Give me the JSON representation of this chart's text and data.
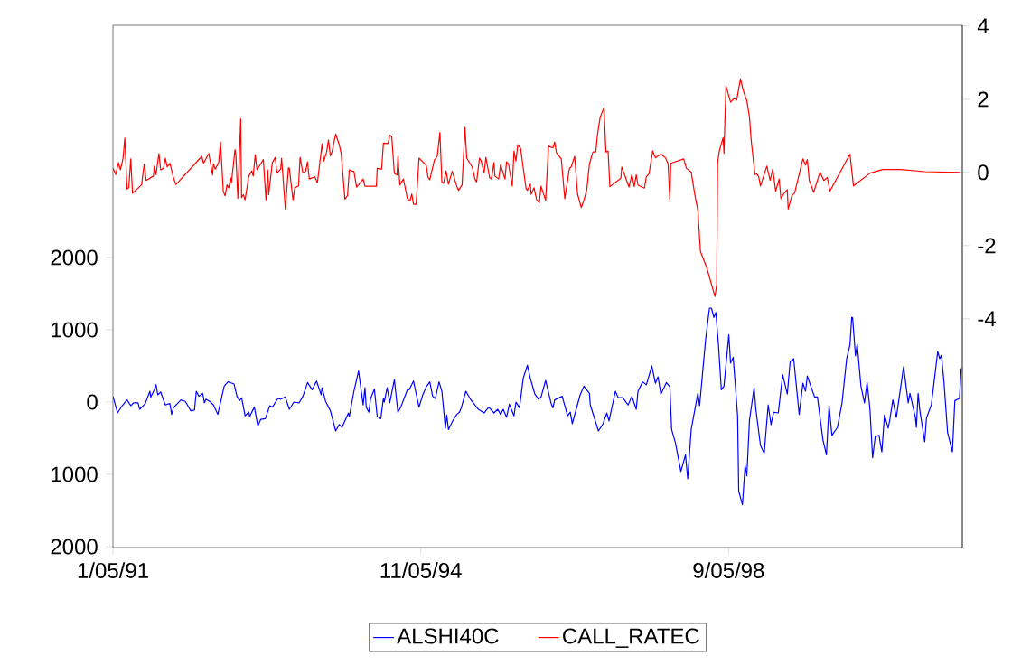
{
  "chart_data": {
    "type": "line",
    "xlim": [
      "1991-01-05",
      "2001-08-03"
    ],
    "xticks": [
      {
        "value": "1991-01-05",
        "label": "1/05/91"
      },
      {
        "value": "1994-11-05",
        "label": "11/05/94"
      },
      {
        "value": "1998-09-05",
        "label": "9/05/98"
      }
    ],
    "ylim": [
      -2012,
      5212
    ],
    "yticks": [
      {
        "value": -2000,
        "label": "2000"
      },
      {
        "value": -1000,
        "label": "1000"
      },
      0,
      1000,
      2000
    ],
    "y2lim": [
      -10.25,
      4.02
    ],
    "y2ticks": [
      -4,
      -2,
      0,
      2,
      4
    ],
    "legend": "bottom",
    "grid": false,
    "series": [
      {
        "name": "ALSHI40C",
        "color": "#0000ff",
        "x": [
          "1991-01-05",
          "1991-01-26",
          "1991-02-16",
          "1991-03-10",
          "1991-03-27",
          "1991-04-09",
          "1991-04-29",
          "1991-05-07",
          "1991-06-01",
          "1991-06-22",
          "1991-06-26",
          "1991-07-12",
          "1991-07-20",
          "1991-07-28",
          "1991-08-10",
          "1991-08-31",
          "1991-09-21",
          "1991-09-29",
          "1991-10-07",
          "1991-11-10",
          "1991-11-30",
          "1991-12-25",
          "1992-01-11",
          "1992-01-19",
          "1992-01-31",
          "1992-02-17",
          "1992-02-25",
          "1992-03-03",
          "1992-03-24",
          "1992-04-06",
          "1992-04-26",
          "1992-05-25",
          "1992-06-11",
          "1992-07-09",
          "1992-07-22",
          "1992-08-03",
          "1992-08-12",
          "1992-08-28",
          "1992-09-14",
          "1992-09-18",
          "1992-10-09",
          "1992-10-25",
          "1992-11-07",
          "1992-11-28",
          "1992-12-18",
          "1992-12-30",
          "1993-01-24",
          "1993-02-06",
          "1993-02-27",
          "1993-03-17",
          "1993-04-07",
          "1993-05-01",
          "1993-05-18",
          "1993-06-08",
          "1993-06-29",
          "1993-07-19",
          "1993-08-09",
          "1993-08-13",
          "1993-08-29",
          "1993-09-20",
          "1993-10-14",
          "1993-10-30",
          "1993-11-12",
          "1993-12-11",
          "1993-12-15",
          "1994-01-05",
          "1994-01-26",
          "1994-02-16",
          "1994-02-24",
          "1994-03-02",
          "1994-03-14",
          "1994-03-22",
          "1994-04-08",
          "1994-04-21",
          "1994-05-07",
          "1994-05-19",
          "1994-05-23",
          "1994-06-05",
          "1994-06-17",
          "1994-07-08",
          "1994-07-24",
          "1994-08-06",
          "1994-09-05",
          "1994-09-13",
          "1994-10-03",
          "1994-10-28",
          "1994-11-14",
          "1994-11-30",
          "1994-12-16",
          "1994-12-29",
          "1995-01-10",
          "1995-01-27",
          "1995-02-09",
          "1995-02-25",
          "1995-03-03",
          "1995-03-11",
          "1995-04-01",
          "1995-04-18",
          "1995-04-30",
          "1995-05-08",
          "1995-05-12",
          "1995-05-29",
          "1995-06-19",
          "1995-07-09",
          "1995-07-25",
          "1995-08-20",
          "1995-09-10",
          "1995-10-04",
          "1995-10-21",
          "1995-11-03",
          "1995-11-15",
          "1995-11-30",
          "1995-12-13",
          "1996-01-03",
          "1996-01-12",
          "1996-01-28",
          "1996-02-14",
          "1996-03-04",
          "1996-03-17",
          "1996-04-07",
          "1996-04-23",
          "1996-05-05",
          "1996-05-26",
          "1996-06-20",
          "1996-06-28",
          "1996-07-06",
          "1996-08-09",
          "1996-09-03",
          "1996-09-15",
          "1996-09-24",
          "1996-10-30",
          "1996-11-16",
          "1996-12-11",
          "1996-12-15",
          "1997-01-21",
          "1997-02-11",
          "1997-02-28",
          "1997-03-10",
          "1997-04-08",
          "1997-04-21",
          "1997-05-11",
          "1997-06-05",
          "1997-06-22",
          "1997-07-12",
          "1997-07-20",
          "1997-08-10",
          "1997-08-27",
          "1997-09-21",
          "1997-10-07",
          "1997-10-19",
          "1997-11-01",
          "1997-11-26",
          "1997-12-12",
          "1997-12-20",
          "1998-01-06",
          "1998-01-31",
          "1998-02-21",
          "1998-03-03",
          "1998-03-19",
          "1998-04-18",
          "1998-04-26",
          "1998-05-04",
          "1998-05-24",
          "1998-06-10",
          "1998-06-19",
          "1998-06-30",
          "1998-07-09",
          "1998-07-21",
          "1998-08-03",
          "1998-08-15",
          "1998-09-06",
          "1998-09-14",
          "1998-09-26",
          "1998-10-16",
          "1998-10-21",
          "1998-11-07",
          "1998-11-19",
          "1998-11-27",
          "1998-12-09",
          "1998-12-30",
          "1999-01-07",
          "1999-01-28",
          "1999-02-14",
          "1999-03-04",
          "1999-03-17",
          "1999-03-29",
          "1999-04-19",
          "1999-05-09",
          "1999-05-30",
          "1999-06-12",
          "1999-06-28",
          "1999-07-23",
          "1999-08-09",
          "1999-08-21",
          "1999-08-29",
          "1999-10-01",
          "1999-10-14",
          "1999-11-08",
          "1999-11-24",
          "1999-12-06",
          "1999-12-19",
          "2000-01-13",
          "2000-02-03",
          "2000-02-24",
          "2000-03-10",
          "2000-03-18",
          "2000-03-22",
          "2000-04-04",
          "2000-04-12",
          "2000-04-29",
          "2000-05-15",
          "2000-05-27",
          "2000-06-09",
          "2000-06-21",
          "2000-07-03",
          "2000-07-20",
          "2000-08-02",
          "2000-08-14",
          "2000-08-31",
          "2000-09-08",
          "2000-09-21",
          "2000-10-07",
          "2000-11-09",
          "2000-11-30",
          "2000-12-08",
          "2001-01-02",
          "2001-01-06",
          "2001-01-14",
          "2001-01-22",
          "2001-02-13",
          "2001-02-21",
          "2001-03-15",
          "2001-04-01",
          "2001-04-13",
          "2001-04-22",
          "2001-04-30",
          "2001-05-12",
          "2001-05-28",
          "2001-06-19",
          "2001-06-30",
          "2001-07-21",
          "2001-07-29"
        ],
        "values": [
          80,
          -150,
          -50,
          30,
          -50,
          -10,
          -10,
          -100,
          -20,
          150,
          70,
          170,
          240,
          100,
          140,
          -40,
          -20,
          -170,
          -80,
          30,
          10,
          -120,
          -110,
          150,
          80,
          120,
          -10,
          40,
          0,
          -40,
          -170,
          220,
          280,
          250,
          80,
          20,
          60,
          -190,
          -140,
          -200,
          -70,
          -330,
          -240,
          -230,
          -50,
          -70,
          50,
          40,
          70,
          -100,
          0,
          -10,
          80,
          270,
          170,
          290,
          100,
          200,
          10,
          -120,
          -400,
          -310,
          -350,
          -150,
          -200,
          150,
          430,
          -40,
          200,
          -70,
          -140,
          50,
          180,
          -200,
          -230,
          50,
          0,
          200,
          -10,
          310,
          -140,
          -70,
          170,
          170,
          290,
          -70,
          100,
          210,
          280,
          80,
          50,
          280,
          150,
          -360,
          -180,
          -380,
          -250,
          -170,
          -140,
          -80,
          -40,
          150,
          40,
          -40,
          -100,
          -150,
          -70,
          -150,
          -100,
          -170,
          -100,
          -210,
          -30,
          -190,
          0,
          -80,
          330,
          510,
          330,
          110,
          40,
          70,
          300,
          -20,
          -80,
          30,
          80,
          -190,
          -140,
          -300,
          100,
          220,
          120,
          -40,
          -400,
          -300,
          -150,
          -260,
          150,
          60,
          60,
          -40,
          80,
          -100,
          150,
          280,
          240,
          500,
          260,
          350,
          110,
          270,
          210,
          -380,
          -560,
          -960,
          -730,
          -1060,
          -380,
          120,
          -50,
          210,
          880,
          1300,
          1300,
          1170,
          1240,
          790,
          170,
          220,
          930,
          540,
          620,
          -190,
          -1230,
          -1420,
          -880,
          -1020,
          -250,
          200,
          -100,
          -600,
          -710,
          -40,
          -310,
          -140,
          -150,
          380,
          110,
          560,
          600,
          -170,
          260,
          150,
          360,
          70,
          70,
          -520,
          -730,
          -50,
          -460,
          -350,
          -10,
          600,
          790,
          1170,
          1170,
          640,
          800,
          220,
          -10,
          270,
          -100,
          -770,
          -480,
          -460,
          -690,
          -180,
          -360,
          -230,
          30,
          -210,
          490,
          -10,
          120,
          -220,
          -350,
          120,
          -120,
          -550,
          -220,
          -40,
          390,
          700,
          600,
          650,
          260,
          -420,
          -690,
          20,
          50,
          470
        ]
      },
      {
        "name": "CALL_RATEC",
        "color": "#ff0000",
        "axis": "y2",
        "x": [
          "1991-01-05",
          "1991-01-18",
          "1991-01-30",
          "1991-02-08",
          "1991-02-20",
          "1991-02-28",
          "1991-03-10",
          "1991-03-18",
          "1991-03-27",
          "1991-04-04",
          "1991-05-15",
          "1991-05-27",
          "1991-06-05",
          "1991-07-08",
          "1991-07-12",
          "1991-07-20",
          "1991-08-02",
          "1991-08-10",
          "1991-08-23",
          "1991-08-31",
          "1991-09-09",
          "1991-09-21",
          "1991-10-07",
          "1991-10-19",
          "1992-02-13",
          "1992-02-21",
          "1992-03-16",
          "1992-04-02",
          "1992-04-06",
          "1992-04-14",
          "1992-04-30",
          "1992-05-08",
          "1992-05-21",
          "1992-05-29",
          "1992-06-07",
          "1992-06-15",
          "1992-06-23",
          "1992-06-27",
          "1992-07-13",
          "1992-07-17",
          "1992-07-26",
          "1992-08-08",
          "1992-08-12",
          "1992-08-20",
          "1992-08-28",
          "1992-09-14",
          "1992-09-27",
          "1992-10-04",
          "1992-10-13",
          "1992-10-21",
          "1992-11-19",
          "1992-12-01",
          "1992-12-09",
          "1992-12-13",
          "1992-12-30",
          "1993-01-12",
          "1993-01-20",
          "1993-02-06",
          "1993-02-10",
          "1993-02-27",
          "1993-03-13",
          "1993-03-17",
          "1993-04-03",
          "1993-04-11",
          "1993-04-28",
          "1993-05-05",
          "1993-05-18",
          "1993-05-30",
          "1993-06-08",
          "1993-06-16",
          "1993-07-11",
          "1993-07-23",
          "1993-08-13",
          "1993-08-21",
          "1993-09-03",
          "1993-09-11",
          "1993-09-20",
          "1993-09-28",
          "1993-10-14",
          "1993-10-30",
          "1993-11-08",
          "1993-11-25",
          "1993-12-07",
          "1993-12-15",
          "1993-12-31",
          "1994-01-05",
          "1994-01-17",
          "1994-01-26",
          "1994-02-16",
          "1994-02-24",
          "1994-04-17",
          "1994-04-21",
          "1994-05-11",
          "1994-05-19",
          "1994-06-09",
          "1994-06-17",
          "1994-06-26",
          "1994-07-08",
          "1994-07-20",
          "1994-07-24",
          "1994-08-02",
          "1994-08-18",
          "1994-09-05",
          "1994-09-17",
          "1994-09-25",
          "1994-10-03",
          "1994-10-15",
          "1994-10-28",
          "1994-11-30",
          "1994-12-08",
          "1994-12-16",
          "1995-01-06",
          "1995-01-19",
          "1995-01-31",
          "1995-02-09",
          "1995-02-17",
          "1995-02-28",
          "1995-03-11",
          "1995-03-28",
          "1995-04-18",
          "1995-04-26",
          "1995-05-12",
          "1995-05-25",
          "1995-06-02",
          "1995-06-27",
          "1995-07-09",
          "1995-07-17",
          "1995-07-30",
          "1995-08-07",
          "1995-08-20",
          "1995-08-28",
          "1995-09-14",
          "1995-09-22",
          "1995-10-04",
          "1995-10-08",
          "1995-10-25",
          "1995-11-03",
          "1995-11-23",
          "1995-11-30",
          "1995-12-09",
          "1995-12-26",
          "1996-01-03",
          "1996-01-12",
          "1996-01-20",
          "1996-02-02",
          "1996-02-14",
          "1996-02-27",
          "1996-03-04",
          "1996-03-17",
          "1996-03-21",
          "1996-04-03",
          "1996-04-15",
          "1996-04-27",
          "1996-05-05",
          "1996-05-26",
          "1996-06-08",
          "1996-06-28",
          "1996-07-06",
          "1996-07-14",
          "1996-08-05",
          "1996-08-21",
          "1996-09-11",
          "1996-09-19",
          "1996-10-05",
          "1996-10-18",
          "1996-11-04",
          "1996-11-16",
          "1996-11-29",
          "1996-12-11",
          "1996-12-27",
          "1997-01-09",
          "1997-01-17",
          "1997-01-29",
          "1997-02-15",
          "1997-02-24",
          "1997-03-06",
          "1997-03-14",
          "1997-05-03",
          "1997-05-07",
          "1997-06-09",
          "1997-06-22",
          "1997-07-03",
          "1997-07-12",
          "1997-07-20",
          "1997-08-18",
          "1997-08-27",
          "1997-09-08",
          "1997-09-25",
          "1997-10-07",
          "1997-11-01",
          "1997-11-22",
          "1997-12-04",
          "1997-12-12",
          "1997-12-16",
          "1998-02-13",
          "1998-02-25",
          "1998-03-19",
          "1998-04-05",
          "1998-04-18",
          "1998-04-30",
          "1998-05-29",
          "1998-07-05",
          "1998-07-13",
          "1998-07-17",
          "1998-07-25",
          "1998-08-11",
          "1998-08-15",
          "1998-08-24",
          "1998-09-14",
          "1998-09-30",
          "1998-10-12",
          "1998-10-29",
          "1998-11-11",
          "1998-11-27",
          "1998-12-09",
          "1998-12-17",
          "1999-01-03",
          "1999-01-11",
          "1999-01-20",
          "1999-01-28",
          "1999-02-26",
          "1999-03-13",
          "1999-03-25",
          "1999-04-07",
          "1999-04-23",
          "1999-05-01",
          "1999-05-13",
          "1999-05-30",
          "1999-06-03",
          "1999-06-20",
          "1999-07-02",
          "1999-08-09",
          "1999-08-21",
          "1999-08-29",
          "1999-09-07",
          "1999-09-27",
          "1999-10-26",
          "1999-11-12",
          "1999-11-28",
          "1999-12-10",
          "2000-03-10",
          "2000-03-26",
          "2000-06-09",
          "2000-08-06",
          "2000-10-27",
          "2001-02-13",
          "2001-07-25"
        ],
        "values": [
          0.11,
          -0.06,
          0.27,
          0.07,
          0.39,
          0.94,
          -0.45,
          -0.42,
          0.37,
          -0.57,
          -0.34,
          0.23,
          -0.22,
          -0.1,
          0.17,
          -0.06,
          0.52,
          0.07,
          0.11,
          0.39,
          0.15,
          0.25,
          -0.14,
          -0.33,
          0.44,
          0.25,
          0.52,
          -0.07,
          0.23,
          0.09,
          0.27,
          0.83,
          -0.53,
          -0.64,
          -0.34,
          -0.42,
          -0.15,
          -0.28,
          0.62,
          0.48,
          -0.71,
          1.46,
          -0.69,
          -0.61,
          -0.75,
          -0.1,
          0.04,
          -0.1,
          0.48,
          0.07,
          0.35,
          -0.75,
          0.07,
          -0.61,
          0.27,
          0.41,
          -0.02,
          0.09,
          0.39,
          -1.0,
          0.12,
          0.12,
          -0.75,
          -0.42,
          -0.37,
          0.41,
          -0.02,
          0.03,
          0.29,
          -0.18,
          -0.12,
          -0.28,
          0.78,
          0.31,
          0.56,
          0.89,
          0.45,
          0.58,
          1.05,
          0.76,
          0.52,
          -0.73,
          -0.63,
          0.07,
          0.03,
          0.03,
          -0.4,
          -0.34,
          -0.18,
          -0.38,
          -0.38,
          0.11,
          0.09,
          0.8,
          0.79,
          1.02,
          0.97,
          -0.03,
          -0.07,
          0.44,
          -0.34,
          -0.18,
          -0.71,
          -0.78,
          -0.59,
          -0.87,
          -0.87,
          0.39,
          0.19,
          -0.14,
          -0.2,
          0.34,
          0.44,
          1.09,
          -0.26,
          -0.3,
          0.04,
          -0.32,
          0.03,
          -0.38,
          -0.49,
          -0.34,
          1.23,
          0.39,
          0.15,
          -0.18,
          -0.26,
          0.39,
          0.31,
          -0.02,
          0.41,
          -0.14,
          -0.18,
          0.27,
          -0.1,
          -0.18,
          0.21,
          -0.18,
          0.29,
          0.23,
          -0.37,
          0.58,
          0.31,
          0.76,
          0.66,
          0.12,
          -0.44,
          -0.49,
          -0.32,
          -0.6,
          -0.42,
          -0.75,
          -0.83,
          -0.38,
          -0.76,
          0.72,
          0.67,
          0.83,
          0.54,
          0.37,
          -0.72,
          0.11,
          0.15,
          0.44,
          -0.59,
          -0.96,
          -0.76,
          -0.47,
          0.23,
          0.56,
          0.56,
          1.05,
          1.51,
          1.77,
          0.56,
          0.58,
          -0.39,
          -0.16,
          0.15,
          -0.4,
          -0.06,
          -0.39,
          -0.07,
          -0.35,
          -0.43,
          -0.12,
          -0.04,
          0.59,
          0.4,
          0.5,
          0.4,
          0.23,
          -0.78,
          0.25,
          0.37,
          0.11,
          0.01,
          -0.63,
          -1.03,
          -2.16,
          -2.61,
          -3.39,
          -3.06,
          0.27,
          0.59,
          0.95,
          0.52,
          2.37,
          1.92,
          2.02,
          1.98,
          2.56,
          2.23,
          1.96,
          1.51,
          0.86,
          -0.06,
          -0.04,
          -0.12,
          -0.37,
          0.17,
          -0.22,
          0.09,
          -0.51,
          -0.18,
          -0.72,
          -0.59,
          -0.47,
          -1.0,
          -0.63,
          -0.57,
          0.37,
          0.2,
          0.35,
          -0.22,
          -0.54,
          0.01,
          -0.22,
          -0.14,
          -0.51,
          0.5,
          -0.37,
          -0.02,
          0.08,
          0.08,
          0.02,
          0.0
        ]
      }
    ]
  }
}
